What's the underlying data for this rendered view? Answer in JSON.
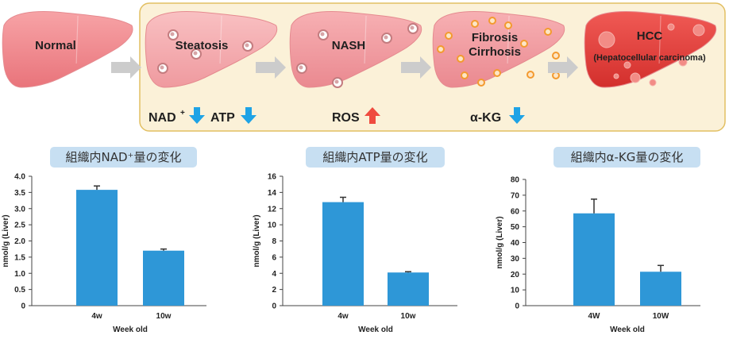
{
  "pathway": {
    "stages": [
      "Normal",
      "Steatosis",
      "NASH",
      "Fibrosis\nCirrhosis",
      "HCC"
    ],
    "hcc_subtitle": "(Hepatocellular carcinoma)",
    "markers": [
      {
        "label": "NAD",
        "superscript": "+",
        "direction": "down"
      },
      {
        "label": "ATP",
        "direction": "down"
      },
      {
        "label": "ROS",
        "direction": "up"
      },
      {
        "label": "α-KG",
        "direction": "down"
      }
    ],
    "colors": {
      "panel_bg": "#fbf1d8",
      "panel_border": "#e2bf62",
      "arrow_gray": "#cccccc",
      "down_arrow": "#1ea3e6",
      "up_arrow": "#ef4b3f"
    }
  },
  "chart_data": [
    {
      "type": "bar",
      "title": "組織内NAD⁺量の変化",
      "categories": [
        "4w",
        "10w"
      ],
      "values": [
        3.58,
        1.7
      ],
      "errors": [
        0.12,
        0.05
      ],
      "xlabel": "Week old",
      "ylabel": "nmol/g (Liver)",
      "ylim": [
        0,
        4.0
      ],
      "yticks": [
        "0",
        "0.5",
        "1.0",
        "1.5",
        "2.0",
        "2.5",
        "3.0",
        "3.5",
        "4.0"
      ],
      "color": "#2e97d7"
    },
    {
      "type": "bar",
      "title": "組織内ATP量の変化",
      "categories": [
        "4w",
        "10w"
      ],
      "values": [
        12.8,
        4.1
      ],
      "errors": [
        0.6,
        0.1
      ],
      "xlabel": "Week old",
      "ylabel": "nmol/g (Liver)",
      "ylim": [
        0,
        16
      ],
      "yticks": [
        "0",
        "2",
        "4",
        "6",
        "8",
        "10",
        "12",
        "14",
        "16"
      ],
      "color": "#2e97d7"
    },
    {
      "type": "bar",
      "title": "組織内α-KG量の変化",
      "categories": [
        "4W",
        "10W"
      ],
      "values": [
        58.5,
        21.5
      ],
      "errors": [
        9,
        4
      ],
      "xlabel": "Week old",
      "ylabel": "nmol/g (Liver)",
      "ylim": [
        0,
        80
      ],
      "yticks": [
        "0",
        "10",
        "20",
        "30",
        "40",
        "50",
        "60",
        "70",
        "80"
      ],
      "color": "#2e97d7"
    }
  ]
}
